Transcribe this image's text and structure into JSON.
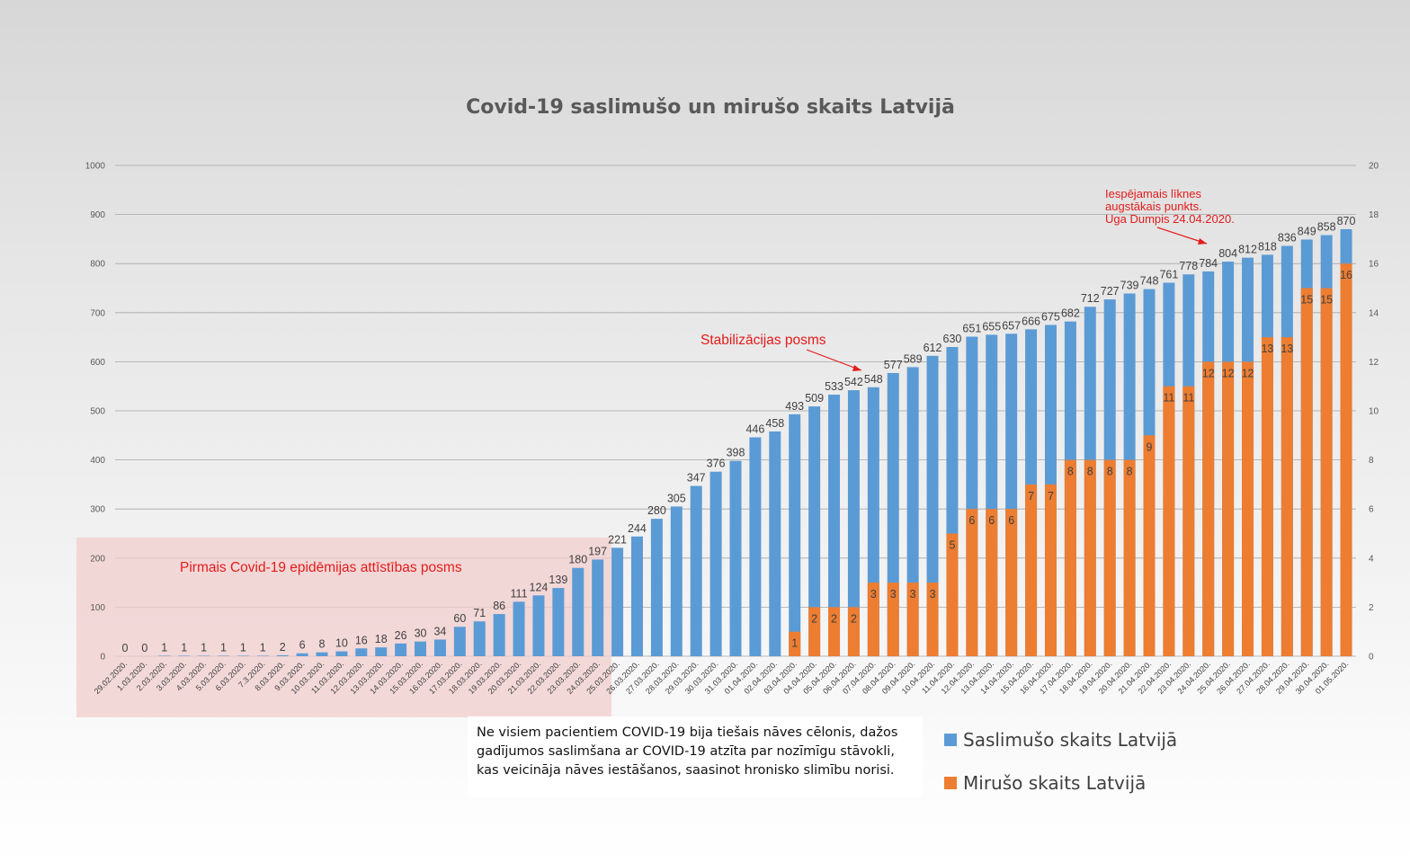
{
  "chart_data": {
    "type": "bar",
    "title": "Covid-19 saslimušo un mirušo skaits Latvijā",
    "y_left": {
      "min": 0,
      "max": 1000,
      "ticks": [
        0,
        100,
        200,
        300,
        400,
        500,
        600,
        700,
        800,
        900,
        1000
      ]
    },
    "y_right": {
      "min": 0,
      "max": 20,
      "ticks": [
        0,
        2,
        4,
        6,
        8,
        10,
        12,
        14,
        16,
        18,
        20
      ]
    },
    "grid": true,
    "legend_position": "bottom-right",
    "categories": [
      "29.02.2020.",
      "1.03.2020.",
      "2.03.2020.",
      "3.03.2020.",
      "4.03.2020.",
      "5.03.2020.",
      "6.03.2020.",
      "7.3.2020.",
      "8.03.2020.",
      "9.03.2020.",
      "10.03.2020.",
      "11.03.2020.",
      "12.03.2020.",
      "13.03.2020.",
      "14.03.2020.",
      "15.03.2020.",
      "16.03.2020.",
      "17.03.2020.",
      "18.03.2020.",
      "19.03.2020.",
      "20.03.2020.",
      "21.03.2020.",
      "22.03.2020.",
      "23.03.2020.",
      "24.03.2020.",
      "25.03.2020.",
      "26.03.2020.",
      "27.03.2020.",
      "28.03.2020.",
      "29.03.2020.",
      "30.03.2020.",
      "31.03.2020.",
      "01.04.2020.",
      "02.04.2020.",
      "03.04.2020.",
      "04.04.2020.",
      "05.04.2020.",
      "06.04.2020.",
      "07.04.2020.",
      "08.04.2020.",
      "09.04.2020.",
      "10.04.2020.",
      "11.04.2020.",
      "12.04.2020.",
      "13.04.2020.",
      "14.04.2020.",
      "15.04.2020.",
      "16.04.2020.",
      "17.04.2020.",
      "18.04.2020.",
      "19.04.2020.",
      "20.04.2020.",
      "21.04.2020.",
      "22.04.2020.",
      "23.04.2020.",
      "24.04.2020.",
      "25.04.2020.",
      "26.04.2020.",
      "27.04.2020.",
      "28.04.2020.",
      "29.04.2020.",
      "30.04.2020.",
      "01.05.2020."
    ],
    "series": [
      {
        "name": "Saslimušo skaits Latvijā",
        "axis": "left",
        "color": "#5b9bd5",
        "values": [
          0,
          0,
          1,
          1,
          1,
          1,
          1,
          1,
          2,
          6,
          8,
          10,
          16,
          18,
          26,
          30,
          34,
          60,
          71,
          86,
          111,
          124,
          139,
          180,
          197,
          221,
          244,
          280,
          305,
          347,
          376,
          398,
          446,
          458,
          493,
          509,
          533,
          542,
          548,
          577,
          589,
          612,
          630,
          651,
          655,
          657,
          666,
          675,
          682,
          712,
          727,
          739,
          748,
          761,
          778,
          784,
          804,
          812,
          818,
          836,
          849,
          858,
          870
        ]
      },
      {
        "name": "Mirušo skaits Latvijā",
        "axis": "right",
        "color": "#ed7d31",
        "values": [
          0,
          0,
          0,
          0,
          0,
          0,
          0,
          0,
          0,
          0,
          0,
          0,
          0,
          0,
          0,
          0,
          0,
          0,
          0,
          0,
          0,
          0,
          0,
          0,
          0,
          0,
          0,
          0,
          0,
          0,
          0,
          0,
          0,
          0,
          1,
          2,
          2,
          2,
          3,
          3,
          3,
          3,
          5,
          6,
          6,
          6,
          7,
          7,
          8,
          8,
          8,
          8,
          9,
          11,
          11,
          12,
          12,
          12,
          13,
          13,
          15,
          15,
          16
        ]
      }
    ],
    "annotations": {
      "phase1": "Pirmais Covid-19 epidēmijas attīstības posms",
      "phase2": "Stabilizācijas posms",
      "peak_line1": "Iespējamais līknes",
      "peak_line2": "augstākais punkts.",
      "peak_line3": "Uga Dumpis 24.04.2020."
    }
  },
  "note_text": "Ne visiem pacientiem COVID-19 bija tiešais nāves cēlonis, dažos gadījumos saslimšana ar COVID-19 atzīta par nozīmīgu stāvokli, kas veicināja nāves iestāšanos, saasinot hronisko slimību norisi.",
  "colors": {
    "cases": "#5b9bd5",
    "deaths": "#ed7d31",
    "highlight": "#f4cccc",
    "annotation": "#e31b1b"
  }
}
